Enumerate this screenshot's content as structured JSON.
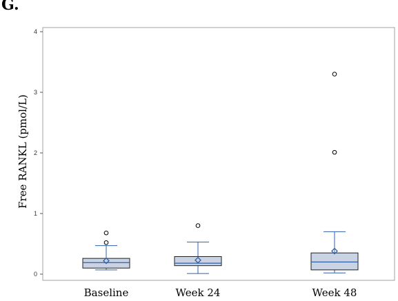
{
  "panel_label": "G.",
  "colors": {
    "box_fill": "#c9d3e3",
    "box_stroke": "#1f1f1f",
    "median": "#2f5fa8",
    "whisker": "#2f5fa8",
    "mean_marker": "#2f5fa8",
    "outlier": "#000000",
    "frame": "#a0a0a0"
  },
  "chart_data": {
    "type": "boxplot",
    "title": "",
    "xlabel": "",
    "ylabel": "Free RANKL (pmol/L)",
    "ylim": [
      -0.05,
      4.05
    ],
    "yticks": [
      0,
      1,
      2,
      3,
      4
    ],
    "grid": false,
    "categories": [
      "Baseline",
      "Week 24",
      "Week 48"
    ],
    "boxes": [
      {
        "category": "Baseline",
        "whisker_low": 0.07,
        "q1": 0.1,
        "median": 0.19,
        "q3": 0.26,
        "whisker_high": 0.47,
        "mean": 0.22,
        "outliers": [
          0.52,
          0.68
        ]
      },
      {
        "category": "Week 24",
        "whisker_low": 0.01,
        "q1": 0.14,
        "median": 0.18,
        "q3": 0.29,
        "whisker_high": 0.53,
        "mean": 0.23,
        "outliers": [
          0.8
        ]
      },
      {
        "category": "Week 48",
        "whisker_low": 0.02,
        "q1": 0.07,
        "median": 0.2,
        "q3": 0.35,
        "whisker_high": 0.7,
        "mean": 0.38,
        "outliers": [
          2.01,
          3.3
        ]
      }
    ]
  }
}
